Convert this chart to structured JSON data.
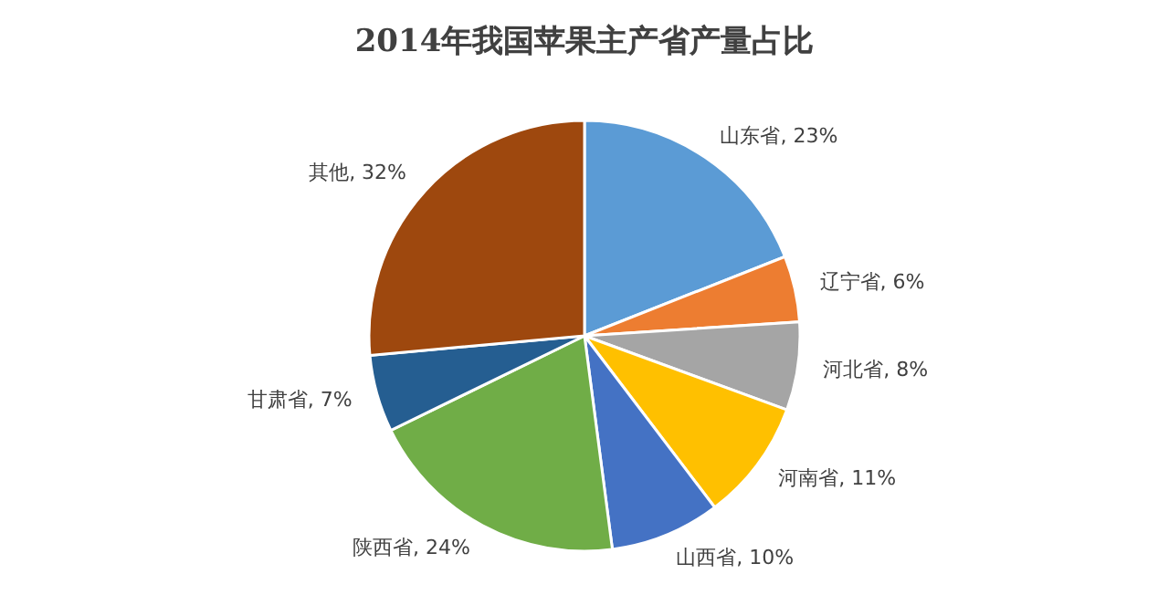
{
  "chart_data": {
    "type": "pie",
    "title": "2014年我国苹果主产省产量占比",
    "categories": [
      "山东省",
      "辽宁省",
      "河北省",
      "河南省",
      "山西省",
      "陕西省",
      "甘肃省",
      "其他"
    ],
    "values": [
      23,
      6,
      8,
      11,
      10,
      24,
      7,
      32
    ],
    "colors": [
      "#5b9bd5",
      "#ed7d31",
      "#a5a5a5",
      "#ffc000",
      "#4472c4",
      "#70ad47",
      "#255e91",
      "#9e480e"
    ],
    "value_labels": [
      "23%",
      "6%",
      "8%",
      "11%",
      "10%",
      "24%",
      "7%",
      "32%"
    ],
    "legend": false
  }
}
